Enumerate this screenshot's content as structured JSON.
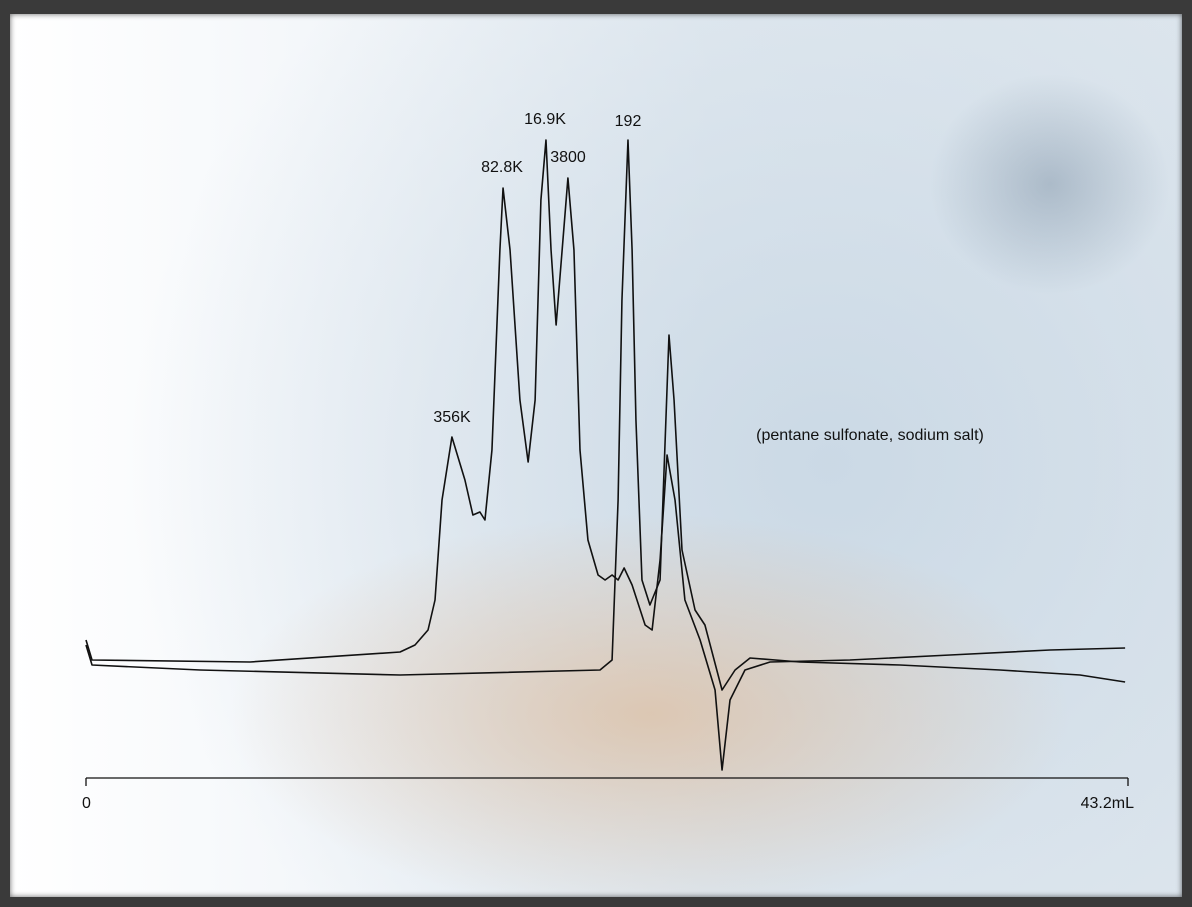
{
  "chart_data": {
    "type": "line",
    "xlim": [
      0,
      43.2
    ],
    "xticks": [
      0,
      {
        "value": 43.2,
        "label": "43.2mL"
      }
    ],
    "ylim": [
      -25,
      113
    ],
    "series": [
      {
        "color": "#111111",
        "x": [
          0,
          0.25,
          6.8,
          13.02,
          13.64,
          14.18,
          14.47,
          14.76,
          15.17,
          15.71,
          16.04,
          16.33,
          16.54,
          16.83,
          17.16,
          17.29,
          17.58,
          17.99,
          18.33,
          18.62,
          18.86,
          19.07,
          19.28,
          19.49,
          19.74,
          19.98,
          20.23,
          20.48,
          20.81,
          21.23,
          21.52,
          21.81,
          22.06,
          22.31,
          22.64,
          23.18,
          23.47,
          23.8,
          24.09,
          24.42,
          24.83,
          25.46,
          26.08,
          26.37,
          26.7,
          27.32,
          28.36,
          31.67,
          35.82,
          39.97,
          43.08
        ],
        "values": [
          5,
          1,
          0.6,
          2.6,
          4,
          7,
          13,
          33,
          45.6,
          37,
          30,
          30.6,
          29,
          43,
          83,
          95.4,
          83,
          53,
          40.6,
          53,
          93,
          105,
          83,
          68,
          83,
          97.4,
          83,
          43,
          25,
          18,
          17,
          18,
          17,
          19.4,
          16,
          8,
          7,
          21,
          42,
          33,
          13,
          5,
          -5,
          -21,
          -7,
          -1,
          0.6,
          1,
          2,
          3,
          3.4
        ]
      },
      {
        "color": "#111111",
        "x": [
          0,
          0.25,
          4.73,
          13.02,
          21.31,
          21.81,
          22.06,
          22.22,
          22.47,
          22.64,
          22.8,
          23.05,
          23.38,
          23.8,
          24.17,
          24.38,
          24.71,
          25.25,
          25.66,
          26.37,
          26.91,
          27.53,
          29.6,
          33.75,
          37.89,
          41.21,
          43.08
        ],
        "values": [
          4,
          0,
          -1,
          -2,
          -1,
          1,
          33,
          73,
          105,
          83,
          49,
          17,
          12,
          17,
          66,
          53,
          23,
          11,
          8,
          -5,
          -1,
          1.4,
          0.6,
          0,
          -1,
          -2,
          -3.4
        ]
      }
    ],
    "annotations": [
      "356K",
      "82.8K",
      "16.9K",
      "3800",
      "192",
      "(pentane sulfonate, sodium salt)"
    ]
  }
}
